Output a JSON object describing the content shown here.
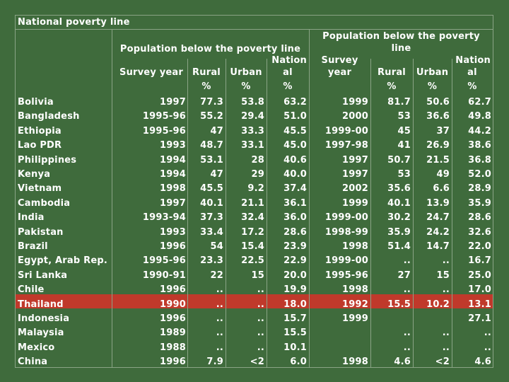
{
  "table": {
    "title": "National poverty line",
    "group1": {
      "title": "Population below the poverty line",
      "survey_year": "Survey year",
      "rural": "Rural",
      "urban": "Urban",
      "national_top": "Nation",
      "national_bottom": "al",
      "unit": "%"
    },
    "group2": {
      "title_line1": "Population below the poverty",
      "title_line2": "line",
      "survey_top": "Survey",
      "survey_bottom": "year",
      "rural": "Rural",
      "urban": "Urban",
      "national_top": "Nation",
      "national_bottom": "al",
      "unit": "%"
    },
    "highlight_color": "#c0392b",
    "rows": [
      {
        "country": "Bolivia",
        "y1": "1997",
        "r1": "77.3",
        "u1": "53.8",
        "n1": "63.2",
        "y2": "1999",
        "r2": "81.7",
        "u2": "50.6",
        "n2": "62.7"
      },
      {
        "country": "Bangladesh",
        "y1": "1995-96",
        "r1": "55.2",
        "u1": "29.4",
        "n1": "51.0",
        "y2": "2000",
        "r2": "53",
        "u2": "36.6",
        "n2": "49.8"
      },
      {
        "country": "Ethiopia",
        "y1": "1995-96",
        "r1": "47",
        "u1": "33.3",
        "n1": "45.5",
        "y2": "1999-00",
        "r2": "45",
        "u2": "37",
        "n2": "44.2"
      },
      {
        "country": "Lao PDR",
        "y1": "1993",
        "r1": "48.7",
        "u1": "33.1",
        "n1": "45.0",
        "y2": "1997-98",
        "r2": "41",
        "u2": "26.9",
        "n2": "38.6"
      },
      {
        "country": "Philippines",
        "y1": "1994",
        "r1": "53.1",
        "u1": "28",
        "n1": "40.6",
        "y2": "1997",
        "r2": "50.7",
        "u2": "21.5",
        "n2": "36.8"
      },
      {
        "country": "Kenya",
        "y1": "1994",
        "r1": "47",
        "u1": "29",
        "n1": "40.0",
        "y2": "1997",
        "r2": "53",
        "u2": "49",
        "n2": "52.0"
      },
      {
        "country": "Vietnam",
        "y1": "1998",
        "r1": "45.5",
        "u1": "9.2",
        "n1": "37.4",
        "y2": "2002",
        "r2": "35.6",
        "u2": "6.6",
        "n2": "28.9"
      },
      {
        "country": "Cambodia",
        "y1": "1997",
        "r1": "40.1",
        "u1": "21.1",
        "n1": "36.1",
        "y2": "1999",
        "r2": "40.1",
        "u2": "13.9",
        "n2": "35.9"
      },
      {
        "country": "India",
        "y1": "1993-94",
        "r1": "37.3",
        "u1": "32.4",
        "n1": "36.0",
        "y2": "1999-00",
        "r2": "30.2",
        "u2": "24.7",
        "n2": "28.6"
      },
      {
        "country": "Pakistan",
        "y1": "1993",
        "r1": "33.4",
        "u1": "17.2",
        "n1": "28.6",
        "y2": "1998-99",
        "r2": "35.9",
        "u2": "24.2",
        "n2": "32.6"
      },
      {
        "country": "Brazil",
        "y1": "1996",
        "r1": "54",
        "u1": "15.4",
        "n1": "23.9",
        "y2": "1998",
        "r2": "51.4",
        "u2": "14.7",
        "n2": "22.0"
      },
      {
        "country": "Egypt, Arab Rep.",
        "y1": "1995-96",
        "r1": "23.3",
        "u1": "22.5",
        "n1": "22.9",
        "y2": "1999-00",
        "r2": "..",
        "u2": "..",
        "n2": "16.7"
      },
      {
        "country": "Sri Lanka",
        "y1": "1990-91",
        "r1": "22",
        "u1": "15",
        "n1": "20.0",
        "y2": "1995-96",
        "r2": "27",
        "u2": "15",
        "n2": "25.0"
      },
      {
        "country": "Chile",
        "y1": "1996",
        "r1": "..",
        "u1": "..",
        "n1": "19.9",
        "y2": "1998",
        "r2": "..",
        "u2": "..",
        "n2": "17.0"
      },
      {
        "country": "Thailand",
        "y1": "1990",
        "r1": "..",
        "u1": "..",
        "n1": "18.0",
        "y2": "1992",
        "r2": "15.5",
        "u2": "10.2",
        "n2": "13.1"
      },
      {
        "country": "Indonesia",
        "y1": "1996",
        "r1": "..",
        "u1": "..",
        "n1": "15.7",
        "y2": "1999",
        "r2": "",
        "u2": "",
        "n2": "27.1"
      },
      {
        "country": "Malaysia",
        "y1": "1989",
        "r1": "..",
        "u1": "..",
        "n1": "15.5",
        "y2": "",
        "r2": "..",
        "u2": "..",
        "n2": ".."
      },
      {
        "country": "Mexico",
        "y1": "1988",
        "r1": "..",
        "u1": "..",
        "n1": "10.1",
        "y2": "",
        "r2": "..",
        "u2": "..",
        "n2": ".."
      },
      {
        "country": "China",
        "y1": "1996",
        "r1": "7.9",
        "u1": "<2",
        "n1": "6.0",
        "y2": "1998",
        "r2": "4.6",
        "u2": "<2",
        "n2": "4.6"
      }
    ]
  }
}
